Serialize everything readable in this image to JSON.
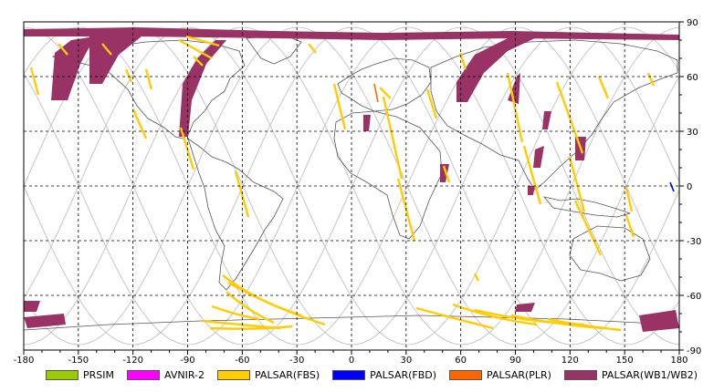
{
  "map": {
    "lon_ticks": [
      "-180",
      "-150",
      "-120",
      "-90",
      "-60",
      "-30",
      "0",
      "30",
      "60",
      "90",
      "120",
      "150",
      "180"
    ],
    "lat_ticks": [
      "90",
      "60",
      "30",
      "0",
      "-30",
      "-60",
      "-90"
    ],
    "lon_range": [
      -180,
      180
    ],
    "lat_range": [
      -90,
      90
    ],
    "grid": "dashed"
  },
  "legend": [
    {
      "label": "PRSIM",
      "color": "#99cc00",
      "icon": "green-swatch"
    },
    {
      "label": "AVNIR-2",
      "color": "#ff00ff",
      "icon": "magenta-swatch"
    },
    {
      "label": "PALSAR(FBS)",
      "color": "#ffcc00",
      "icon": "yellow-swatch"
    },
    {
      "label": "PALSAR(FBD)",
      "color": "#0000ff",
      "icon": "blue-swatch"
    },
    {
      "label": "PALSAR(PLR)",
      "color": "#ff6600",
      "icon": "orange-swatch"
    },
    {
      "label": "PALSAR(WB1/WB2)",
      "color": "#993366",
      "icon": "maroon-swatch"
    }
  ]
}
